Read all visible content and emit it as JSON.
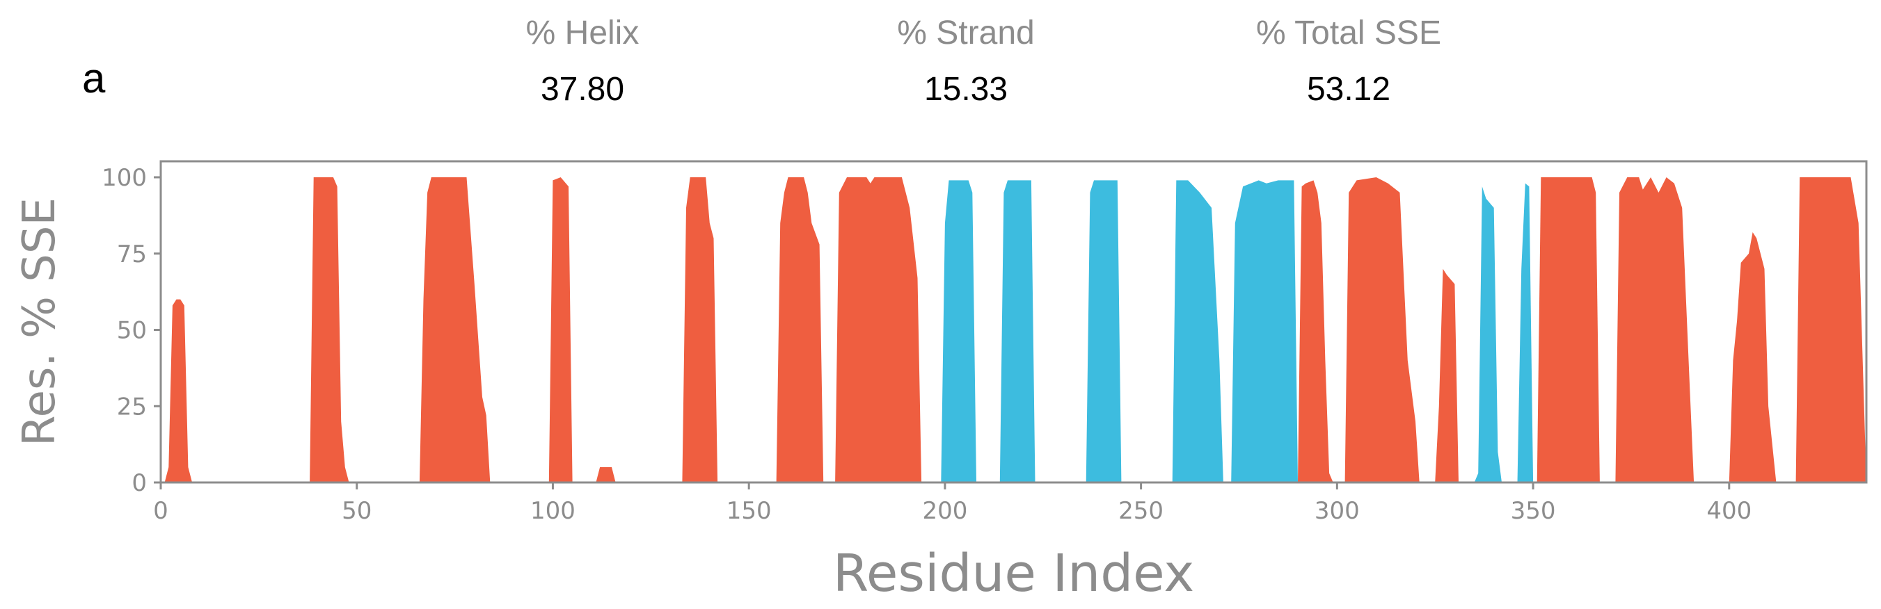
{
  "panel_label": "a",
  "stats": [
    {
      "name": "% Helix",
      "value": "37.80"
    },
    {
      "name": "% Strand",
      "value": "15.33"
    },
    {
      "name": "% Total SSE",
      "value": "53.12"
    }
  ],
  "colors": {
    "helix": "#EF5E40",
    "strand": "#3DBCDF",
    "axis": "#8c8c8c"
  },
  "chart_data": {
    "type": "area",
    "xlabel": "Residue Index",
    "ylabel": "Res. % SSE",
    "xlim": [
      0,
      435
    ],
    "ylim": [
      0,
      105
    ],
    "xticks": [
      0,
      50,
      100,
      150,
      200,
      250,
      300,
      350,
      400
    ],
    "yticks": [
      0,
      25,
      50,
      75,
      100
    ],
    "grid": false,
    "series": [
      {
        "kind": "helix",
        "segments": [
          [
            [
              1,
              0
            ],
            [
              2,
              5
            ],
            [
              3,
              58
            ],
            [
              4,
              60
            ],
            [
              5,
              60
            ],
            [
              6,
              58
            ],
            [
              7,
              5
            ],
            [
              8,
              0
            ]
          ],
          [
            [
              38,
              0
            ],
            [
              39,
              100
            ],
            [
              40,
              100
            ],
            [
              44,
              100
            ],
            [
              45,
              97
            ],
            [
              46,
              20
            ],
            [
              47,
              5
            ],
            [
              48,
              0
            ]
          ],
          [
            [
              66,
              0
            ],
            [
              67,
              60
            ],
            [
              68,
              95
            ],
            [
              69,
              100
            ],
            [
              78,
              100
            ],
            [
              80,
              65
            ],
            [
              82,
              28
            ],
            [
              83,
              22
            ],
            [
              84,
              0
            ]
          ],
          [
            [
              99,
              0
            ],
            [
              100,
              99
            ],
            [
              102,
              100
            ],
            [
              104,
              97
            ],
            [
              105,
              0
            ]
          ],
          [
            [
              111,
              0
            ],
            [
              112,
              5
            ],
            [
              115,
              5
            ],
            [
              116,
              0
            ]
          ],
          [
            [
              133,
              0
            ],
            [
              134,
              90
            ],
            [
              135,
              100
            ],
            [
              139,
              100
            ],
            [
              140,
              85
            ],
            [
              141,
              80
            ],
            [
              142,
              0
            ]
          ],
          [
            [
              157,
              0
            ],
            [
              158,
              85
            ],
            [
              159,
              95
            ],
            [
              160,
              100
            ],
            [
              164,
              100
            ],
            [
              165,
              95
            ],
            [
              166,
              85
            ],
            [
              168,
              78
            ],
            [
              169,
              0
            ]
          ],
          [
            [
              172,
              0
            ],
            [
              173,
              95
            ],
            [
              175,
              100
            ],
            [
              180,
              100
            ],
            [
              181,
              98
            ],
            [
              182,
              100
            ],
            [
              189,
              100
            ],
            [
              191,
              90
            ],
            [
              193,
              67
            ],
            [
              194,
              0
            ]
          ],
          [
            [
              290,
              0
            ],
            [
              291,
              97
            ],
            [
              292,
              98
            ],
            [
              294,
              99
            ],
            [
              295,
              95
            ],
            [
              296,
              85
            ],
            [
              297,
              40
            ],
            [
              298,
              3
            ],
            [
              299,
              0
            ]
          ],
          [
            [
              302,
              0
            ],
            [
              303,
              95
            ],
            [
              305,
              99
            ],
            [
              310,
              100
            ],
            [
              313,
              98
            ],
            [
              316,
              95
            ],
            [
              318,
              40
            ],
            [
              320,
              20
            ],
            [
              321,
              0
            ]
          ],
          [
            [
              325,
              0
            ],
            [
              326,
              25
            ],
            [
              327,
              70
            ],
            [
              328,
              68
            ],
            [
              330,
              65
            ],
            [
              331,
              0
            ]
          ],
          [
            [
              351,
              0
            ],
            [
              352,
              100
            ],
            [
              365,
              100
            ],
            [
              366,
              95
            ],
            [
              367,
              0
            ]
          ],
          [
            [
              371,
              0
            ],
            [
              372,
              95
            ],
            [
              374,
              100
            ],
            [
              377,
              100
            ],
            [
              378,
              96
            ],
            [
              380,
              100
            ],
            [
              382,
              95
            ],
            [
              384,
              100
            ],
            [
              386,
              98
            ],
            [
              388,
              90
            ],
            [
              390,
              30
            ],
            [
              391,
              0
            ]
          ],
          [
            [
              400,
              0
            ],
            [
              401,
              40
            ],
            [
              402,
              53
            ],
            [
              403,
              72
            ],
            [
              405,
              75
            ],
            [
              406,
              82
            ],
            [
              407,
              80
            ],
            [
              409,
              70
            ],
            [
              410,
              25
            ],
            [
              412,
              0
            ]
          ],
          [
            [
              417,
              0
            ],
            [
              418,
              100
            ],
            [
              431,
              100
            ],
            [
              433,
              85
            ],
            [
              435,
              0
            ]
          ]
        ]
      },
      {
        "kind": "strand",
        "segments": [
          [
            [
              199,
              0
            ],
            [
              200,
              85
            ],
            [
              201,
              99
            ],
            [
              206,
              99
            ],
            [
              207,
              95
            ],
            [
              208,
              0
            ]
          ],
          [
            [
              214,
              0
            ],
            [
              215,
              95
            ],
            [
              216,
              99
            ],
            [
              222,
              99
            ],
            [
              223,
              0
            ]
          ],
          [
            [
              236,
              0
            ],
            [
              237,
              95
            ],
            [
              238,
              99
            ],
            [
              244,
              99
            ],
            [
              245,
              0
            ]
          ],
          [
            [
              258,
              0
            ],
            [
              259,
              99
            ],
            [
              262,
              99
            ],
            [
              265,
              95
            ],
            [
              268,
              90
            ],
            [
              270,
              40
            ],
            [
              271,
              0
            ]
          ],
          [
            [
              273,
              0
            ],
            [
              274,
              85
            ],
            [
              276,
              97
            ],
            [
              280,
              99
            ],
            [
              282,
              98
            ],
            [
              285,
              99
            ],
            [
              289,
              99
            ],
            [
              290,
              0
            ]
          ],
          [
            [
              335,
              0
            ],
            [
              336,
              3
            ],
            [
              337,
              97
            ],
            [
              338,
              93
            ],
            [
              340,
              90
            ],
            [
              341,
              10
            ],
            [
              342,
              0
            ]
          ],
          [
            [
              346,
              0
            ],
            [
              347,
              70
            ],
            [
              348,
              98
            ],
            [
              349,
              97
            ],
            [
              350,
              0
            ]
          ]
        ]
      }
    ]
  }
}
